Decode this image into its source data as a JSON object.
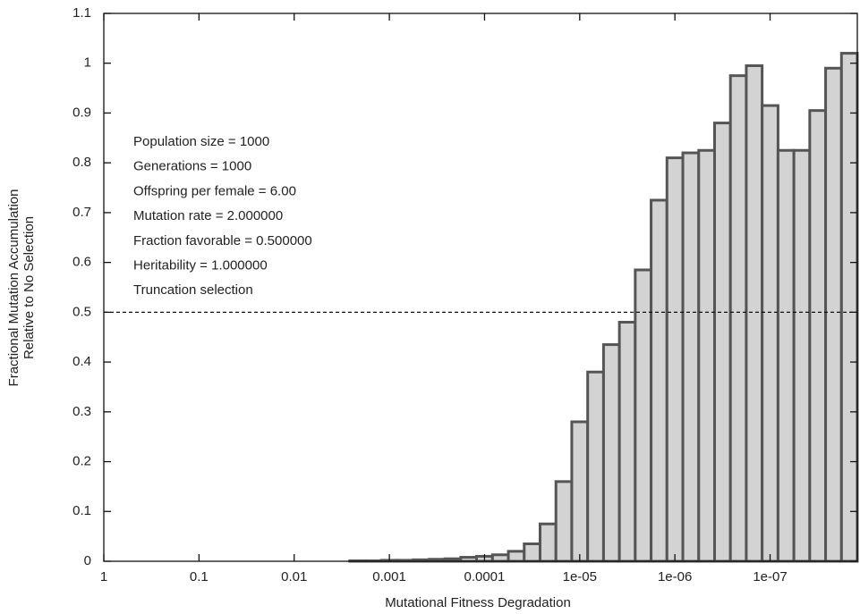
{
  "chart_data": {
    "type": "histogram",
    "xlabel": "Mutational Fitness Degradation",
    "ylabel": [
      "Fractional Mutation Accumulation",
      "Relative to No Selection"
    ],
    "annotations": [
      "Population size = 1000",
      "Generations = 1000",
      "Offspring per female = 6.00",
      "Mutation rate = 2.000000",
      "Fraction favorable = 0.500000",
      "Heritability = 1.000000",
      "Truncation selection"
    ],
    "xscale": "log",
    "x_reversed": true,
    "xlim": [
      1,
      1.212e-08
    ],
    "xticks": [
      1,
      0.1,
      0.01,
      0.001,
      0.0001,
      {
        "value": 1e-05,
        "label": "1e-05"
      },
      {
        "value": 1e-06,
        "label": "1e-06"
      },
      {
        "value": 1e-07,
        "label": "1e-07"
      }
    ],
    "ylim": [
      0,
      1.1
    ],
    "yticks": [
      0,
      0.1,
      0.2,
      0.3,
      0.4,
      0.5,
      0.6,
      0.7,
      0.8,
      0.9,
      1,
      1.1
    ],
    "reference_line": 0.5,
    "color": "#d3d3d3",
    "edge_color": "#555555",
    "bins": [
      0.00261,
      0.001778,
      0.001212,
      0.000825,
      0.000562,
      0.000383,
      0.000261,
      0.0001778,
      0.0001212,
      8.25e-05,
      5.62e-05,
      3.83e-05,
      2.61e-05,
      1.778e-05,
      1.212e-05,
      8.25e-06,
      5.62e-06,
      3.83e-06,
      2.61e-06,
      1.778e-06,
      1.212e-06,
      8.25e-07,
      5.62e-07,
      3.83e-07,
      2.61e-07,
      1.778e-07,
      1.212e-07,
      8.25e-08,
      5.62e-08,
      3.83e-08,
      2.61e-08,
      1.778e-08,
      1.212e-08
    ],
    "values": [
      0.001,
      0.001,
      0.002,
      0.002,
      0.003,
      0.004,
      0.005,
      0.008,
      0.01,
      0.013,
      0.02,
      0.035,
      0.075,
      0.16,
      0.28,
      0.38,
      0.435,
      0.48,
      0.585,
      0.725,
      0.81,
      0.82,
      0.825,
      0.88,
      0.975,
      0.995,
      0.915,
      0.825,
      0.825,
      0.905,
      0.99,
      1.02
    ]
  }
}
